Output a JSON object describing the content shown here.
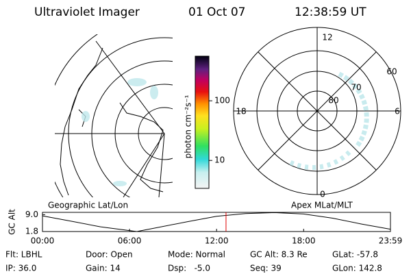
{
  "header": {
    "title": "Ultraviolet Imager",
    "date": "01 Oct 07",
    "time": "12:38:59 UT"
  },
  "left_panel": {
    "label": "Geographic Lat/Lon"
  },
  "right_panel": {
    "label": "Apex MLat/MLT",
    "mlt_labels": [
      "12",
      "18",
      "6",
      "0"
    ],
    "lat_labels": [
      "60",
      "70",
      "80"
    ]
  },
  "colorbar": {
    "label": "photon cm⁻²s⁻¹",
    "lim": [
      3.4,
      560
    ],
    "ticks": [
      10,
      100
    ],
    "log": true
  },
  "chart_data": {
    "type": "line",
    "ylabel": "GC Alt",
    "x": [
      0,
      2,
      4,
      6.5,
      8,
      10,
      12,
      14,
      16,
      18,
      20,
      22,
      23.983
    ],
    "values": [
      8.5,
      6.2,
      3.8,
      1.8,
      3.6,
      6.0,
      8.3,
      9.5,
      9.9,
      9.3,
      7.5,
      5.0,
      2.8
    ],
    "color": "#000000",
    "xlim": [
      0,
      23.983
    ],
    "ylim": [
      1.8,
      10
    ],
    "xticks": [
      {
        "value": 0,
        "label": "00:00"
      },
      {
        "value": 6,
        "label": "06:00"
      },
      {
        "value": 12,
        "label": "12:00"
      },
      {
        "value": 18,
        "label": "18:00"
      },
      {
        "value": 23.983,
        "label": "23:59"
      }
    ],
    "yticks": [
      {
        "value": 9,
        "label": "9.0"
      },
      {
        "value": 1.8,
        "label": "1.8"
      }
    ],
    "marker": {
      "x": 12.65,
      "color": "#e00000"
    }
  },
  "footer": {
    "row1": [
      "Flt: LBHL",
      "Door: Open",
      "Mode: Normal",
      "GC Alt: 8.3 Re",
      "GLat: -57.8"
    ],
    "row2": [
      "IP: 36.0",
      "Gain: 14",
      "Dsp:   -5.0",
      "Seq: 39",
      "GLon: 142.8"
    ]
  }
}
